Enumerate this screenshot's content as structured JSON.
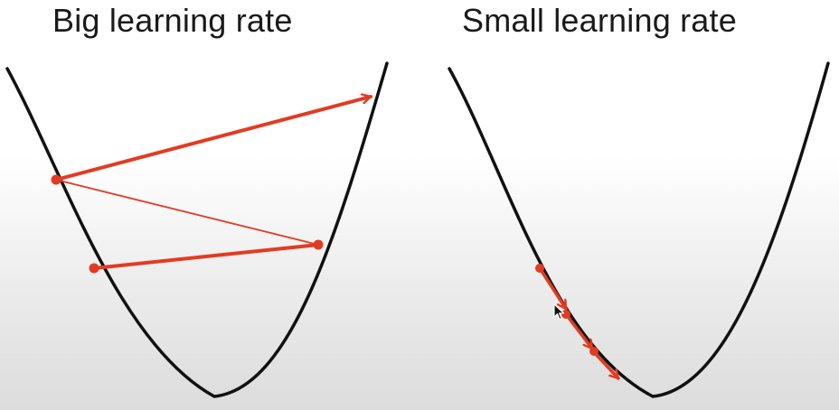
{
  "panels": [
    {
      "title": "Big learning rate"
    },
    {
      "title": "Small learning rate"
    }
  ],
  "colors": {
    "curve": "#111111",
    "step_arrow": "#e23b22",
    "point": "#e23b22"
  },
  "icons": {
    "cursor": "mouse-pointer-icon"
  }
}
